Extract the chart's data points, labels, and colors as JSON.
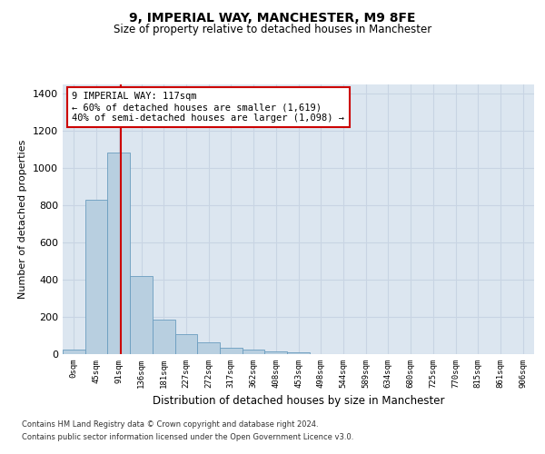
{
  "title": "9, IMPERIAL WAY, MANCHESTER, M9 8FE",
  "subtitle": "Size of property relative to detached houses in Manchester",
  "xlabel": "Distribution of detached houses by size in Manchester",
  "ylabel": "Number of detached properties",
  "bin_labels": [
    "0sqm",
    "45sqm",
    "91sqm",
    "136sqm",
    "181sqm",
    "227sqm",
    "272sqm",
    "317sqm",
    "362sqm",
    "408sqm",
    "453sqm",
    "498sqm",
    "544sqm",
    "589sqm",
    "634sqm",
    "680sqm",
    "725sqm",
    "770sqm",
    "815sqm",
    "861sqm",
    "906sqm"
  ],
  "bar_heights": [
    25,
    830,
    1080,
    420,
    185,
    105,
    63,
    35,
    25,
    15,
    10,
    0,
    0,
    0,
    0,
    0,
    0,
    0,
    0,
    0,
    0
  ],
  "bar_color": "#b8cfe0",
  "bar_edge_color": "#6a9dbf",
  "grid_color": "#c8d4e3",
  "background_color": "#dce6f0",
  "annotation_box_text": "9 IMPERIAL WAY: 117sqm\n← 60% of detached houses are smaller (1,619)\n40% of semi-detached houses are larger (1,098) →",
  "annotation_box_color": "#ffffff",
  "annotation_box_edge_color": "#cc0000",
  "property_line_color": "#cc0000",
  "ylim": [
    0,
    1450
  ],
  "yticks": [
    0,
    200,
    400,
    600,
    800,
    1000,
    1200,
    1400
  ],
  "footer_line1": "Contains HM Land Registry data © Crown copyright and database right 2024.",
  "footer_line2": "Contains public sector information licensed under the Open Government Licence v3.0."
}
